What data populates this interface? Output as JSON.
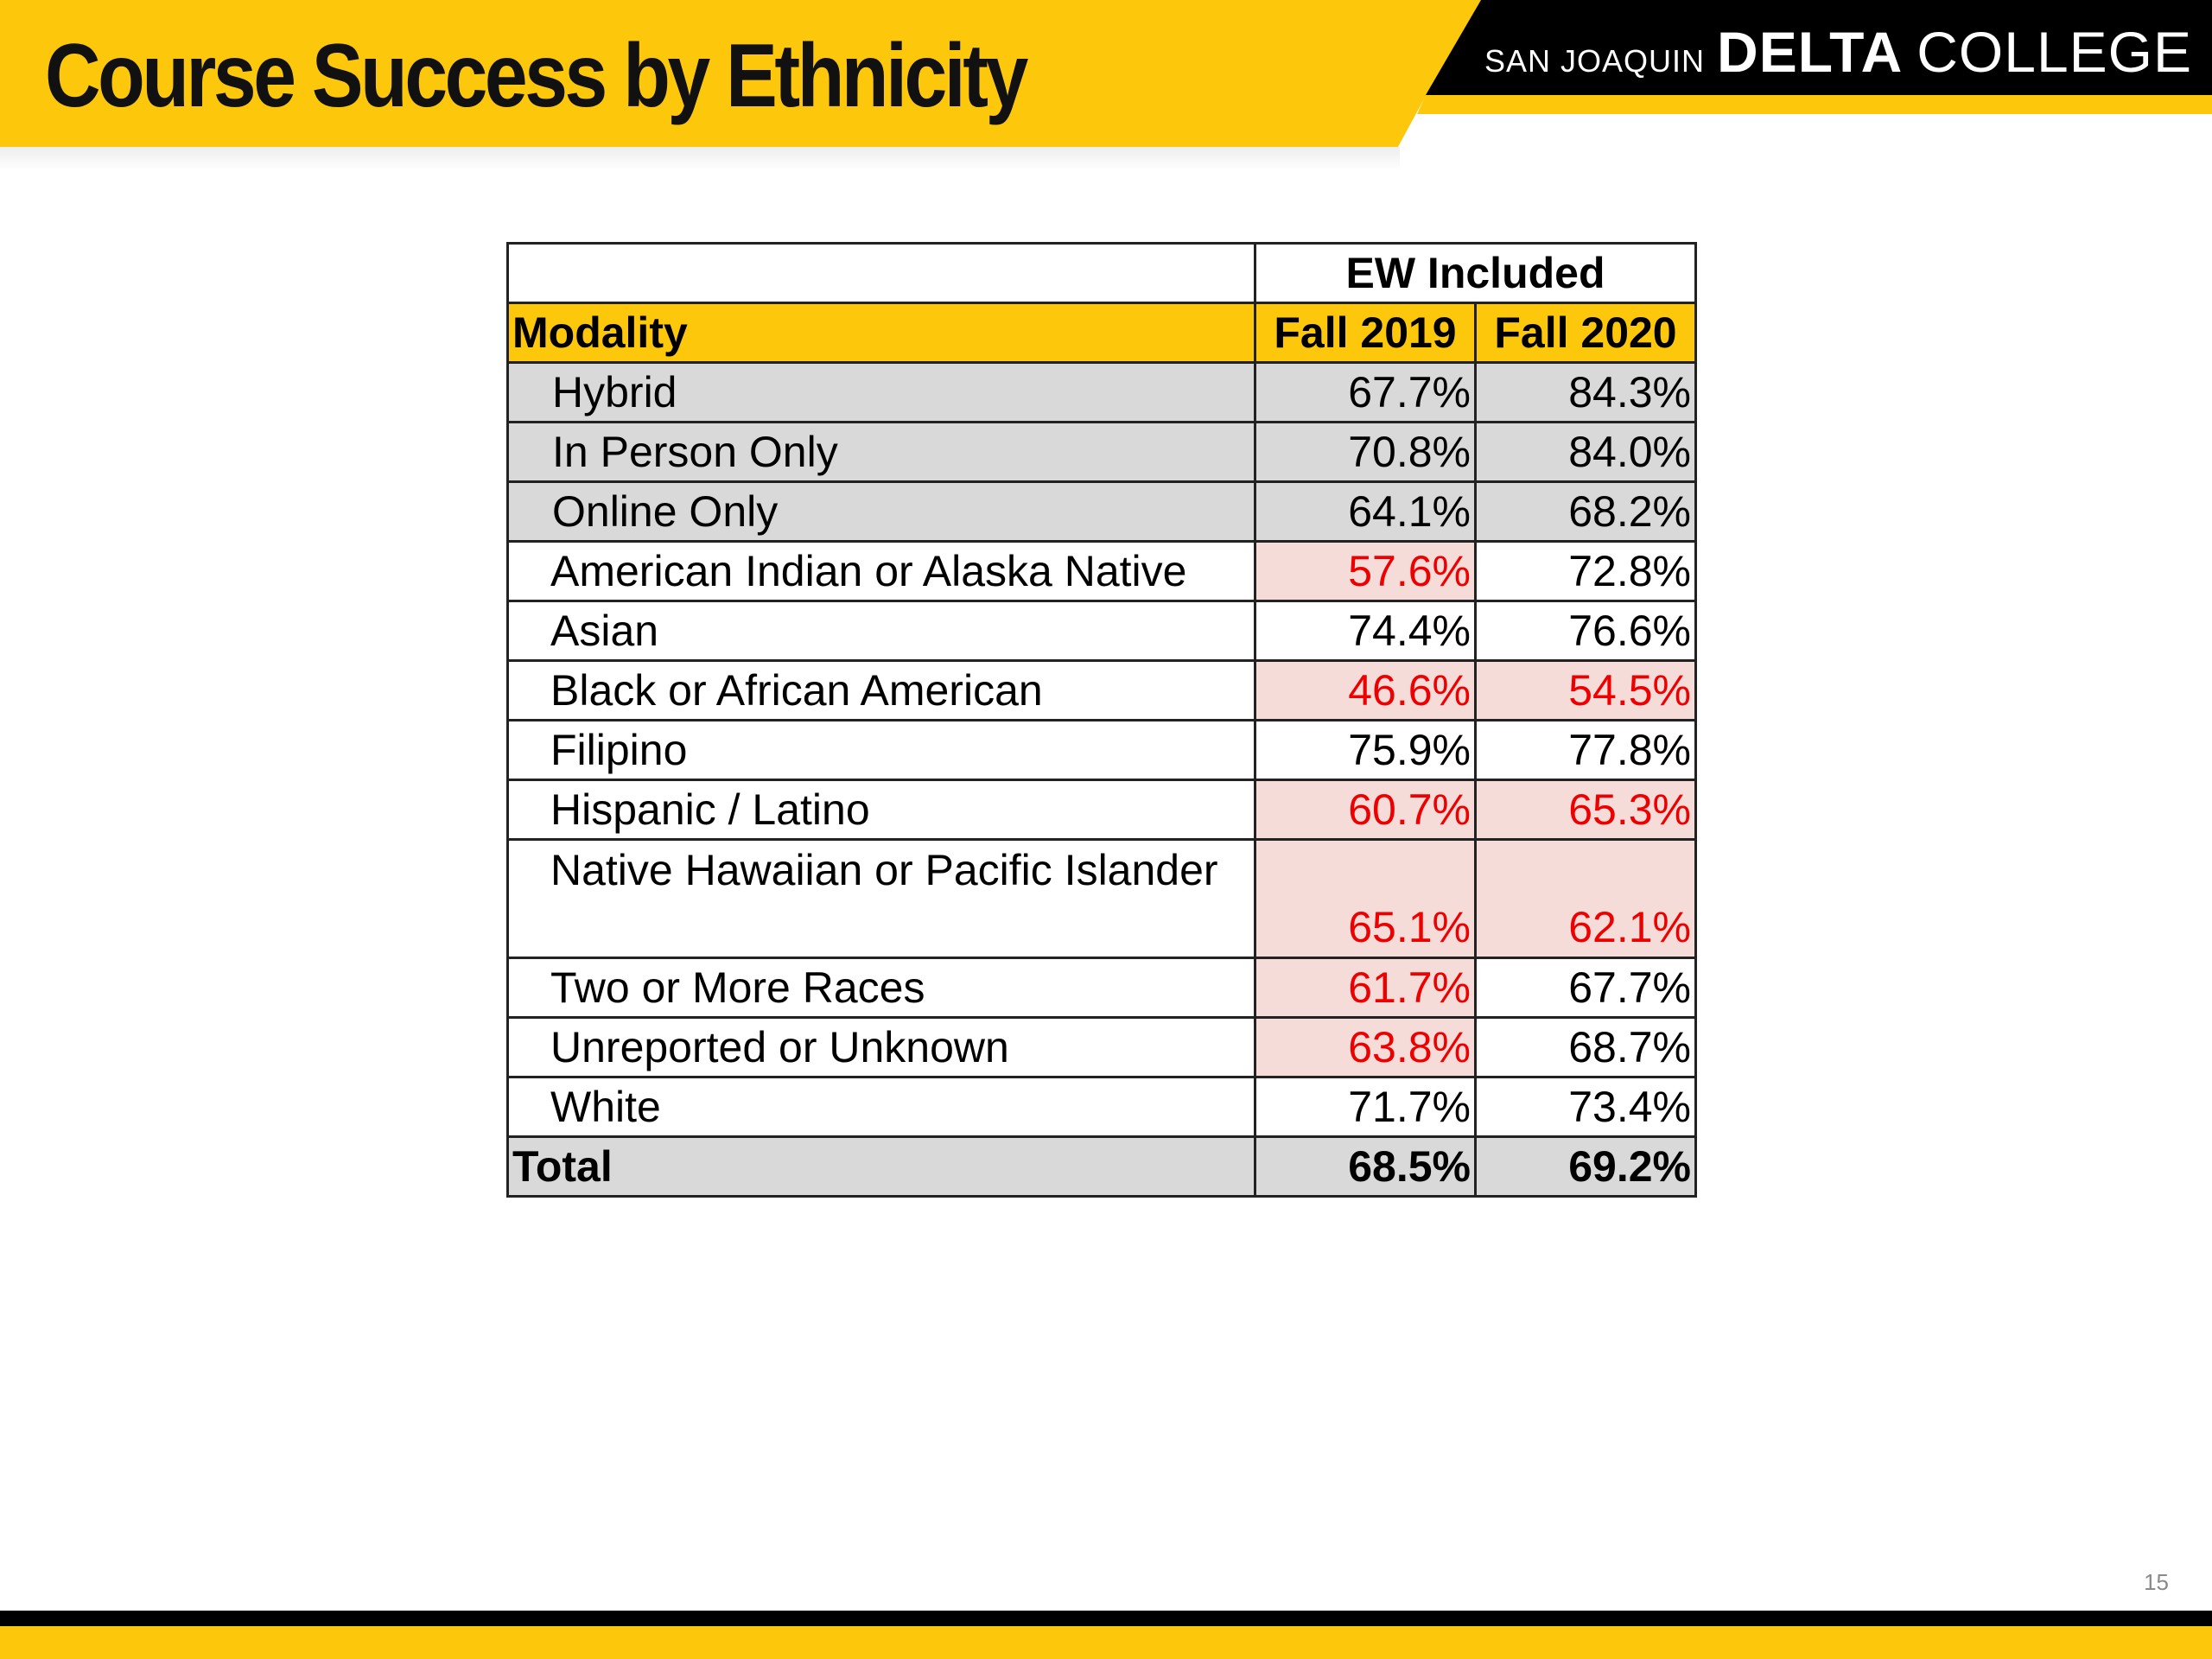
{
  "slide": {
    "title": "Course Success by Ethnicity",
    "page_number": "15"
  },
  "logo": {
    "small": "SAN JOAQUIN",
    "bold": "DELTA",
    "regular": "COLLEGE"
  },
  "colors": {
    "brand_gold": "#fdc70b",
    "header_black": "#000000",
    "row_gray": "#d9d9d9",
    "flag_fill": "#f6dcd8",
    "flag_text": "#ee0000"
  },
  "table": {
    "group_header": "EW Included",
    "columns": [
      "Modality",
      "Fall 2019",
      "Fall 2020"
    ],
    "modality_rows": [
      {
        "label": "Hybrid",
        "fall_2019": "67.7%",
        "fall_2020": "84.3%"
      },
      {
        "label": "In Person Only",
        "fall_2019": "70.8%",
        "fall_2020": "84.0%"
      },
      {
        "label": "Online Only",
        "fall_2019": "64.1%",
        "fall_2020": "68.2%"
      }
    ],
    "ethnicity_rows": [
      {
        "label": "American Indian or Alaska Native",
        "fall_2019": "57.6%",
        "fall_2020": "72.8%",
        "flag_2019": true,
        "flag_2020": false
      },
      {
        "label": "Asian",
        "fall_2019": "74.4%",
        "fall_2020": "76.6%",
        "flag_2019": false,
        "flag_2020": false
      },
      {
        "label": "Black or African American",
        "fall_2019": "46.6%",
        "fall_2020": "54.5%",
        "flag_2019": true,
        "flag_2020": true
      },
      {
        "label": "Filipino",
        "fall_2019": "75.9%",
        "fall_2020": "77.8%",
        "flag_2019": false,
        "flag_2020": false
      },
      {
        "label": "Hispanic / Latino",
        "fall_2019": "60.7%",
        "fall_2020": "65.3%",
        "flag_2019": true,
        "flag_2020": true
      },
      {
        "label": "Native Hawaiian or Pacific Islander",
        "fall_2019": "65.1%",
        "fall_2020": "62.1%",
        "flag_2019": true,
        "flag_2020": true
      },
      {
        "label": "Two or More Races",
        "fall_2019": "61.7%",
        "fall_2020": "67.7%",
        "flag_2019": true,
        "flag_2020": false
      },
      {
        "label": "Unreported or Unknown",
        "fall_2019": "63.8%",
        "fall_2020": "68.7%",
        "flag_2019": true,
        "flag_2020": false
      },
      {
        "label": "White",
        "fall_2019": "71.7%",
        "fall_2020": "73.4%",
        "flag_2019": false,
        "flag_2020": false
      }
    ],
    "total": {
      "label": "Total",
      "fall_2019": "68.5%",
      "fall_2020": "69.2%"
    }
  }
}
